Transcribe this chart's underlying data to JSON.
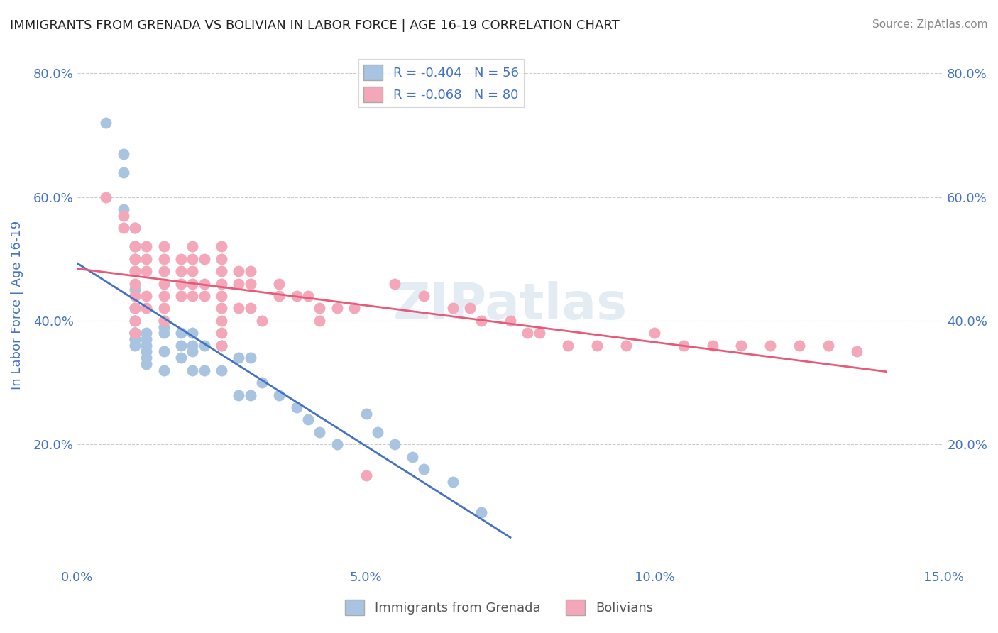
{
  "title": "IMMIGRANTS FROM GRENADA VS BOLIVIAN IN LABOR FORCE | AGE 16-19 CORRELATION CHART",
  "source": "Source: ZipAtlas.com",
  "ylabel": "In Labor Force | Age 16-19",
  "xlabel": "",
  "xlim": [
    0.0,
    0.15
  ],
  "ylim": [
    0.0,
    0.85
  ],
  "yticks_left": [
    0.0,
    0.2,
    0.4,
    0.6,
    0.8
  ],
  "ytick_labels_left": [
    "",
    "20.0%",
    "40.0%",
    "60.0%",
    "80.0%"
  ],
  "xticks": [
    0.0,
    0.05,
    0.1,
    0.15
  ],
  "xtick_labels": [
    "0.0%",
    "5.0%",
    "10.0%",
    "15.0%"
  ],
  "blue_R": -0.404,
  "blue_N": 56,
  "pink_R": -0.068,
  "pink_N": 80,
  "blue_color": "#a8c4e0",
  "pink_color": "#f4a7b9",
  "blue_line_color": "#4472c4",
  "pink_line_color": "#e85a7a",
  "legend_label_blue": "Immigrants from Grenada",
  "legend_label_pink": "Bolivians",
  "blue_scatter_x": [
    0.005,
    0.008,
    0.008,
    0.008,
    0.01,
    0.01,
    0.01,
    0.01,
    0.01,
    0.01,
    0.01,
    0.01,
    0.01,
    0.01,
    0.01,
    0.01,
    0.01,
    0.012,
    0.012,
    0.012,
    0.012,
    0.012,
    0.012,
    0.015,
    0.015,
    0.015,
    0.015,
    0.015,
    0.018,
    0.018,
    0.018,
    0.02,
    0.02,
    0.02,
    0.02,
    0.022,
    0.022,
    0.025,
    0.025,
    0.028,
    0.028,
    0.03,
    0.03,
    0.032,
    0.035,
    0.038,
    0.04,
    0.042,
    0.045,
    0.05,
    0.052,
    0.055,
    0.058,
    0.06,
    0.065,
    0.07
  ],
  "blue_scatter_y": [
    0.72,
    0.67,
    0.64,
    0.58,
    0.55,
    0.52,
    0.5,
    0.48,
    0.45,
    0.42,
    0.4,
    0.38,
    0.38,
    0.38,
    0.37,
    0.37,
    0.36,
    0.38,
    0.37,
    0.36,
    0.35,
    0.34,
    0.33,
    0.4,
    0.39,
    0.38,
    0.35,
    0.32,
    0.38,
    0.36,
    0.34,
    0.38,
    0.36,
    0.35,
    0.32,
    0.36,
    0.32,
    0.36,
    0.32,
    0.34,
    0.28,
    0.34,
    0.28,
    0.3,
    0.28,
    0.26,
    0.24,
    0.22,
    0.2,
    0.25,
    0.22,
    0.2,
    0.18,
    0.16,
    0.14,
    0.09
  ],
  "pink_scatter_x": [
    0.005,
    0.008,
    0.008,
    0.01,
    0.01,
    0.01,
    0.01,
    0.01,
    0.01,
    0.01,
    0.01,
    0.01,
    0.012,
    0.012,
    0.012,
    0.012,
    0.012,
    0.015,
    0.015,
    0.015,
    0.015,
    0.015,
    0.015,
    0.015,
    0.018,
    0.018,
    0.018,
    0.018,
    0.02,
    0.02,
    0.02,
    0.02,
    0.02,
    0.022,
    0.022,
    0.022,
    0.025,
    0.025,
    0.025,
    0.025,
    0.025,
    0.025,
    0.025,
    0.025,
    0.025,
    0.028,
    0.028,
    0.028,
    0.03,
    0.03,
    0.03,
    0.032,
    0.035,
    0.035,
    0.038,
    0.04,
    0.042,
    0.042,
    0.045,
    0.048,
    0.05,
    0.055,
    0.06,
    0.065,
    0.068,
    0.07,
    0.075,
    0.078,
    0.08,
    0.085,
    0.09,
    0.095,
    0.1,
    0.105,
    0.11,
    0.115,
    0.12,
    0.125,
    0.13,
    0.135
  ],
  "pink_scatter_y": [
    0.6,
    0.57,
    0.55,
    0.55,
    0.52,
    0.5,
    0.48,
    0.46,
    0.44,
    0.42,
    0.4,
    0.38,
    0.52,
    0.5,
    0.48,
    0.44,
    0.42,
    0.52,
    0.5,
    0.48,
    0.46,
    0.44,
    0.42,
    0.4,
    0.5,
    0.48,
    0.46,
    0.44,
    0.52,
    0.5,
    0.48,
    0.46,
    0.44,
    0.5,
    0.46,
    0.44,
    0.52,
    0.5,
    0.48,
    0.46,
    0.44,
    0.42,
    0.4,
    0.38,
    0.36,
    0.48,
    0.46,
    0.42,
    0.48,
    0.46,
    0.42,
    0.4,
    0.46,
    0.44,
    0.44,
    0.44,
    0.42,
    0.4,
    0.42,
    0.42,
    0.15,
    0.46,
    0.44,
    0.42,
    0.42,
    0.4,
    0.4,
    0.38,
    0.38,
    0.36,
    0.36,
    0.36,
    0.38,
    0.36,
    0.36,
    0.36,
    0.36,
    0.36,
    0.36,
    0.35
  ],
  "watermark": "ZIPatlas",
  "watermark_color": "#c8d8e8",
  "background_color": "#ffffff",
  "grid_color": "#cccccc",
  "title_color": "#222222",
  "axis_label_color": "#4472c4",
  "tick_label_color": "#4472c4"
}
